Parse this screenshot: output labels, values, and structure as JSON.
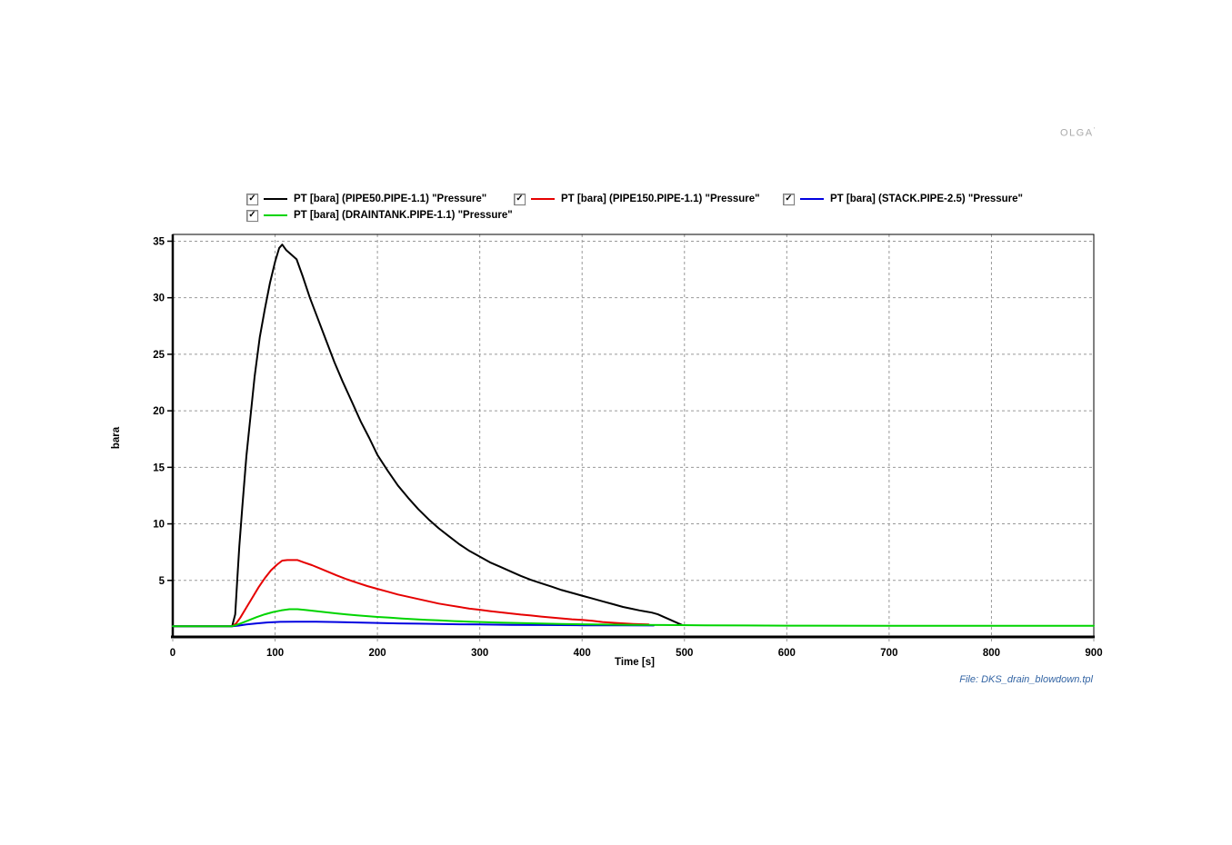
{
  "watermark": {
    "text": "OLGA",
    "mark": "'"
  },
  "file_label": "File: DKS_drain_blowdown.tpl",
  "legend": {
    "checkmark": "✓",
    "items": [
      {
        "label": "PT [bara] (PIPE50.PIPE-1.1) \"Pressure\"",
        "color": "#000000",
        "checked": true
      },
      {
        "label": "PT [bara] (PIPE150.PIPE-1.1) \"Pressure\"",
        "color": "#e60000",
        "checked": true
      },
      {
        "label": "PT [bara] (STACK.PIPE-2.5) \"Pressure\"",
        "color": "#0000e0",
        "checked": true
      },
      {
        "label": "PT [bara] (DRAINTANK.PIPE-1.1) \"Pressure\"",
        "color": "#00d400",
        "checked": true
      }
    ]
  },
  "chart_data": {
    "type": "line",
    "title": "",
    "xlabel": "Time [s]",
    "ylabel": "bara",
    "xlim": [
      0,
      900
    ],
    "ylim": [
      0,
      35.6
    ],
    "xticks": [
      0,
      100,
      200,
      300,
      400,
      500,
      600,
      700,
      800,
      900
    ],
    "yticks": [
      5,
      10,
      15,
      20,
      25,
      30,
      35
    ],
    "grid": true,
    "grid_color": "#999999",
    "legend_position": "top",
    "series": [
      {
        "name": "PT [bara] (PIPE50.PIPE-1.1) \"Pressure\"",
        "slug": "pipe50",
        "color": "#000000",
        "points": [
          [
            0,
            0.95
          ],
          [
            58,
            0.95
          ],
          [
            61,
            2
          ],
          [
            63,
            5
          ],
          [
            65,
            8
          ],
          [
            68,
            11.5
          ],
          [
            72,
            16
          ],
          [
            76,
            19.5
          ],
          [
            80,
            23
          ],
          [
            85,
            26.5
          ],
          [
            90,
            29
          ],
          [
            95,
            31.3
          ],
          [
            100,
            33.2
          ],
          [
            104,
            34.4
          ],
          [
            107,
            34.7
          ],
          [
            111,
            34.2
          ],
          [
            116,
            33.8
          ],
          [
            121,
            33.4
          ],
          [
            127,
            31.9
          ],
          [
            134,
            30
          ],
          [
            142,
            28.1
          ],
          [
            150,
            26.2
          ],
          [
            158,
            24.3
          ],
          [
            166,
            22.6
          ],
          [
            175,
            20.8
          ],
          [
            184,
            19
          ],
          [
            192,
            17.6
          ],
          [
            200,
            16.1
          ],
          [
            210,
            14.7
          ],
          [
            220,
            13.4
          ],
          [
            230,
            12.3
          ],
          [
            240,
            11.3
          ],
          [
            250,
            10.4
          ],
          [
            260,
            9.6
          ],
          [
            270,
            8.9
          ],
          [
            280,
            8.2
          ],
          [
            290,
            7.6
          ],
          [
            300,
            7.1
          ],
          [
            310,
            6.6
          ],
          [
            320,
            6.2
          ],
          [
            330,
            5.8
          ],
          [
            340,
            5.4
          ],
          [
            350,
            5.05
          ],
          [
            360,
            4.75
          ],
          [
            370,
            4.45
          ],
          [
            380,
            4.15
          ],
          [
            390,
            3.9
          ],
          [
            400,
            3.65
          ],
          [
            410,
            3.4
          ],
          [
            420,
            3.15
          ],
          [
            430,
            2.9
          ],
          [
            440,
            2.65
          ],
          [
            448,
            2.5
          ],
          [
            456,
            2.35
          ],
          [
            462,
            2.25
          ],
          [
            468,
            2.15
          ],
          [
            474,
            2.0
          ],
          [
            479,
            1.8
          ],
          [
            484,
            1.6
          ],
          [
            489,
            1.4
          ],
          [
            494,
            1.2
          ],
          [
            498,
            1.05
          ]
        ]
      },
      {
        "name": "PT [bara] (PIPE150.PIPE-1.1) \"Pressure\"",
        "slug": "pipe150",
        "color": "#e60000",
        "points": [
          [
            0,
            0.95
          ],
          [
            58,
            0.95
          ],
          [
            62,
            1.2
          ],
          [
            66,
            1.7
          ],
          [
            72,
            2.6
          ],
          [
            78,
            3.5
          ],
          [
            84,
            4.4
          ],
          [
            90,
            5.2
          ],
          [
            96,
            5.9
          ],
          [
            102,
            6.4
          ],
          [
            107,
            6.75
          ],
          [
            112,
            6.8
          ],
          [
            122,
            6.8
          ],
          [
            128,
            6.6
          ],
          [
            136,
            6.35
          ],
          [
            144,
            6.05
          ],
          [
            152,
            5.75
          ],
          [
            160,
            5.45
          ],
          [
            170,
            5.1
          ],
          [
            180,
            4.8
          ],
          [
            190,
            4.5
          ],
          [
            200,
            4.25
          ],
          [
            210,
            4.0
          ],
          [
            220,
            3.75
          ],
          [
            230,
            3.55
          ],
          [
            240,
            3.35
          ],
          [
            250,
            3.15
          ],
          [
            260,
            2.95
          ],
          [
            270,
            2.8
          ],
          [
            280,
            2.65
          ],
          [
            290,
            2.5
          ],
          [
            300,
            2.4
          ],
          [
            310,
            2.28
          ],
          [
            320,
            2.18
          ],
          [
            330,
            2.08
          ],
          [
            340,
            1.98
          ],
          [
            350,
            1.9
          ],
          [
            360,
            1.8
          ],
          [
            370,
            1.72
          ],
          [
            380,
            1.64
          ],
          [
            390,
            1.56
          ],
          [
            400,
            1.5
          ],
          [
            410,
            1.42
          ],
          [
            420,
            1.32
          ],
          [
            435,
            1.22
          ],
          [
            450,
            1.15
          ],
          [
            465,
            1.1
          ]
        ]
      },
      {
        "name": "PT [bara] (STACK.PIPE-2.5) \"Pressure\"",
        "slug": "stack",
        "color": "#0000e0",
        "points": [
          [
            0,
            0.95
          ],
          [
            58,
            0.95
          ],
          [
            64,
            1.0
          ],
          [
            72,
            1.1
          ],
          [
            82,
            1.2
          ],
          [
            92,
            1.28
          ],
          [
            105,
            1.33
          ],
          [
            120,
            1.35
          ],
          [
            140,
            1.35
          ],
          [
            160,
            1.32
          ],
          [
            180,
            1.28
          ],
          [
            200,
            1.24
          ],
          [
            220,
            1.2
          ],
          [
            240,
            1.17
          ],
          [
            260,
            1.14
          ],
          [
            280,
            1.12
          ],
          [
            300,
            1.1
          ],
          [
            330,
            1.07
          ],
          [
            360,
            1.05
          ],
          [
            400,
            1.03
          ],
          [
            440,
            1.02
          ],
          [
            470,
            1.01
          ]
        ]
      },
      {
        "name": "PT [bara] (DRAINTANK.PIPE-1.1) \"Pressure\"",
        "slug": "draintank",
        "color": "#00d400",
        "points": [
          [
            0,
            0.95
          ],
          [
            58,
            0.95
          ],
          [
            62,
            1.05
          ],
          [
            68,
            1.25
          ],
          [
            75,
            1.5
          ],
          [
            82,
            1.75
          ],
          [
            90,
            2.0
          ],
          [
            98,
            2.2
          ],
          [
            106,
            2.35
          ],
          [
            114,
            2.45
          ],
          [
            122,
            2.45
          ],
          [
            130,
            2.38
          ],
          [
            140,
            2.28
          ],
          [
            150,
            2.18
          ],
          [
            160,
            2.08
          ],
          [
            170,
            1.99
          ],
          [
            180,
            1.91
          ],
          [
            190,
            1.84
          ],
          [
            200,
            1.77
          ],
          [
            212,
            1.7
          ],
          [
            224,
            1.63
          ],
          [
            236,
            1.57
          ],
          [
            248,
            1.51
          ],
          [
            260,
            1.46
          ],
          [
            275,
            1.4
          ],
          [
            290,
            1.35
          ],
          [
            305,
            1.31
          ],
          [
            320,
            1.27
          ],
          [
            340,
            1.22
          ],
          [
            360,
            1.18
          ],
          [
            380,
            1.15
          ],
          [
            400,
            1.12
          ],
          [
            425,
            1.09
          ],
          [
            450,
            1.07
          ],
          [
            480,
            1.05
          ],
          [
            520,
            1.03
          ],
          [
            560,
            1.01
          ],
          [
            600,
            1.0
          ],
          [
            700,
            0.98
          ],
          [
            800,
            0.98
          ],
          [
            900,
            0.98
          ]
        ]
      }
    ]
  }
}
